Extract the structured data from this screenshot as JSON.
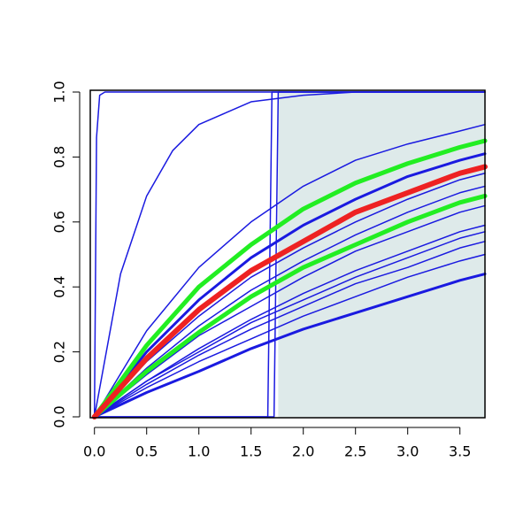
{
  "chart_data": {
    "type": "line",
    "xlim": [
      -0.04,
      3.74
    ],
    "ylim": [
      0,
      1
    ],
    "xticks": [
      {
        "value": 0,
        "label": "0.0"
      },
      0.5,
      {
        "value": 1,
        "label": "1.0"
      },
      1.5,
      {
        "value": 2,
        "label": "2.0"
      },
      2.5,
      {
        "value": 3,
        "label": "3.0"
      },
      3.5
    ],
    "yticks": [
      {
        "value": 0,
        "label": "0.0"
      },
      0.2,
      0.4,
      0.6,
      0.8,
      {
        "value": 1,
        "label": "1.0"
      }
    ],
    "shaded_region": {
      "x": [
        1.76,
        3.74
      ],
      "color": "#deeaea"
    },
    "series": [
      {
        "color": "#1a1ae0",
        "line_width": 1.5,
        "x": [
          0,
          0.02,
          0.05,
          0.1,
          3.74
        ],
        "values": [
          0,
          0.86,
          0.99,
          1,
          1
        ]
      },
      {
        "color": "#1a1ae0",
        "line_width": 1.5,
        "x": [
          0,
          0.25,
          0.5,
          0.75,
          1,
          1.5,
          2,
          2.5,
          3.74
        ],
        "values": [
          0,
          0.44,
          0.68,
          0.82,
          0.9,
          0.97,
          0.99,
          1,
          1
        ]
      },
      {
        "color": "#1a1ae0",
        "line_width": 1.5,
        "x": [
          0,
          1.66,
          1.68,
          1.7,
          3.74
        ],
        "values": [
          0,
          0,
          0.5,
          1,
          1
        ]
      },
      {
        "color": "#1a1ae0",
        "line_width": 1.5,
        "x": [
          0,
          1.72,
          1.74,
          1.76,
          3.74
        ],
        "values": [
          0,
          0,
          0.5,
          1,
          1
        ]
      },
      {
        "color": "#1a1ae0",
        "line_width": 1.5,
        "x": [
          0,
          0.5,
          1,
          1.5,
          2,
          2.5,
          3,
          3.5,
          3.74
        ],
        "values": [
          0,
          0.265,
          0.46,
          0.6,
          0.71,
          0.79,
          0.84,
          0.88,
          0.9
        ]
      },
      {
        "color": "#1a1ae0",
        "line_width": 3,
        "x": [
          0,
          0.5,
          1,
          1.5,
          2,
          2.5,
          3,
          3.5,
          3.74
        ],
        "values": [
          0,
          0.2,
          0.36,
          0.49,
          0.59,
          0.67,
          0.74,
          0.79,
          0.81
        ]
      },
      {
        "color": "#1a1ae0",
        "line_width": 1.5,
        "x": [
          0,
          0.5,
          1,
          1.5,
          2,
          2.5,
          3,
          3.5,
          3.74
        ],
        "values": [
          0,
          0.17,
          0.31,
          0.43,
          0.52,
          0.6,
          0.67,
          0.73,
          0.75
        ]
      },
      {
        "color": "#1a1ae0",
        "line_width": 1.5,
        "x": [
          0,
          0.5,
          1,
          1.5,
          2,
          2.5,
          3,
          3.5,
          3.74
        ],
        "values": [
          0,
          0.15,
          0.28,
          0.39,
          0.48,
          0.56,
          0.63,
          0.69,
          0.71
        ]
      },
      {
        "color": "#1a1ae0",
        "line_width": 1.5,
        "x": [
          0,
          0.5,
          1,
          1.5,
          2,
          2.5,
          3,
          3.5,
          3.74
        ],
        "values": [
          0,
          0.13,
          0.25,
          0.34,
          0.43,
          0.51,
          0.57,
          0.63,
          0.65
        ]
      },
      {
        "color": "#1a1ae0",
        "line_width": 1.5,
        "x": [
          0,
          0.5,
          1,
          1.5,
          2,
          2.5,
          3,
          3.5,
          3.74
        ],
        "values": [
          0,
          0.11,
          0.21,
          0.3,
          0.38,
          0.45,
          0.51,
          0.57,
          0.59
        ]
      },
      {
        "color": "#1a1ae0",
        "line_width": 1.5,
        "x": [
          0,
          0.5,
          1,
          1.5,
          2,
          2.5,
          3,
          3.5,
          3.74
        ],
        "values": [
          0,
          0.11,
          0.2,
          0.29,
          0.36,
          0.43,
          0.49,
          0.55,
          0.57
        ]
      },
      {
        "color": "#1a1ae0",
        "line_width": 1.5,
        "x": [
          0,
          0.5,
          1,
          1.5,
          2,
          2.5,
          3,
          3.5,
          3.74
        ],
        "values": [
          0,
          0.1,
          0.19,
          0.27,
          0.34,
          0.41,
          0.46,
          0.52,
          0.54
        ]
      },
      {
        "color": "#1a1ae0",
        "line_width": 1.5,
        "x": [
          0,
          0.5,
          1,
          1.5,
          2,
          2.5,
          3,
          3.5,
          3.74
        ],
        "values": [
          0,
          0.09,
          0.17,
          0.24,
          0.31,
          0.37,
          0.43,
          0.48,
          0.5
        ]
      },
      {
        "color": "#1a1ae0",
        "line_width": 3,
        "x": [
          0,
          0.5,
          1,
          1.5,
          2,
          2.5,
          3,
          3.5,
          3.74
        ],
        "values": [
          0,
          0.075,
          0.14,
          0.21,
          0.27,
          0.32,
          0.37,
          0.42,
          0.44
        ]
      },
      {
        "color": "#22ee22",
        "line_width": 5,
        "x": [
          0,
          0.5,
          1,
          1.5,
          2,
          2.5,
          3,
          3.5,
          3.74
        ],
        "values": [
          0,
          0.22,
          0.4,
          0.53,
          0.64,
          0.72,
          0.78,
          0.83,
          0.85
        ]
      },
      {
        "color": "#22ee22",
        "line_width": 5,
        "x": [
          0,
          0.5,
          1,
          1.5,
          2,
          2.5,
          3,
          3.5,
          3.74
        ],
        "values": [
          0,
          0.14,
          0.26,
          0.37,
          0.46,
          0.53,
          0.6,
          0.66,
          0.68
        ]
      },
      {
        "color": "#ee2222",
        "line_width": 6,
        "x": [
          0,
          0.5,
          1,
          1.5,
          2,
          2.5,
          3,
          3.5,
          3.74
        ],
        "values": [
          0,
          0.18,
          0.33,
          0.45,
          0.54,
          0.63,
          0.69,
          0.75,
          0.77
        ]
      }
    ]
  }
}
